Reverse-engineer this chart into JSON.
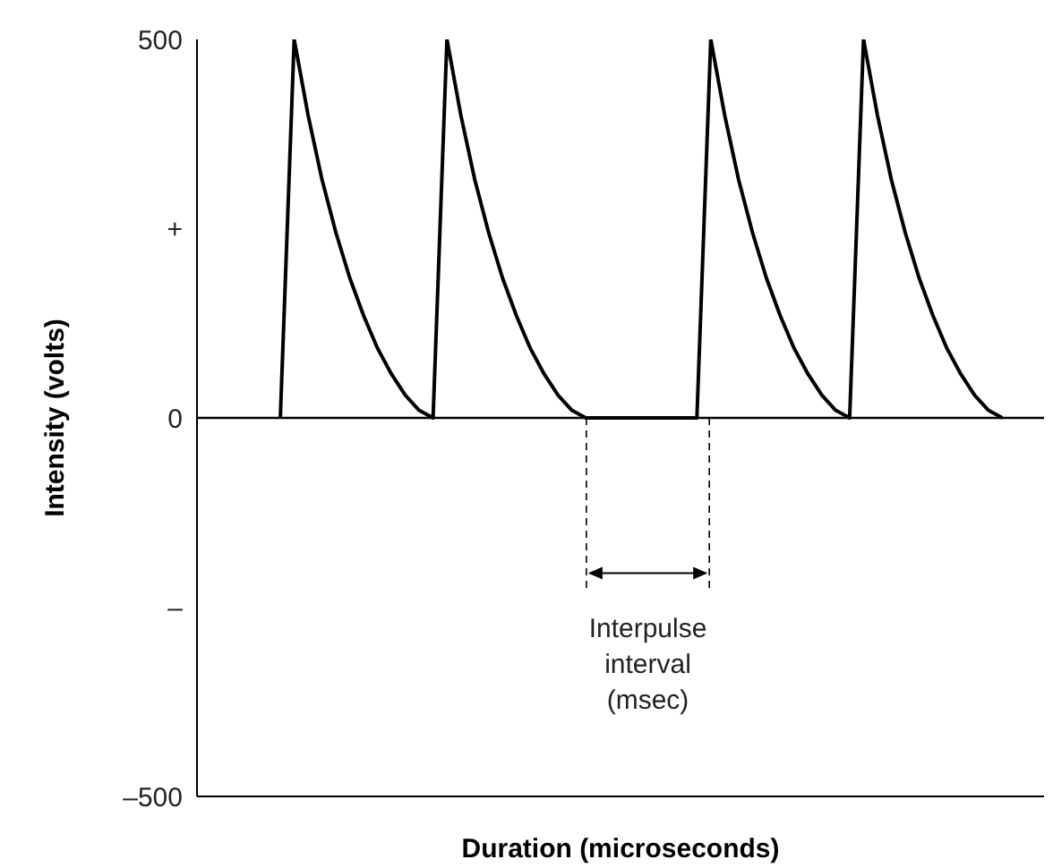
{
  "chart_data": {
    "type": "line",
    "xlabel": "Duration (microseconds)",
    "ylabel": "Intensity (volts)",
    "categories": [
      null,
      null,
      null,
      null,
      null,
      null,
      null,
      null,
      null,
      null,
      null,
      null,
      null,
      null,
      null,
      null,
      null,
      null,
      null,
      null,
      null,
      null,
      null,
      null,
      null,
      null,
      null,
      null,
      null,
      null,
      null,
      null,
      null,
      null,
      null,
      null,
      null,
      null,
      null,
      null,
      null,
      null,
      null,
      null,
      null,
      null,
      null,
      null,
      null,
      null,
      null,
      null,
      null,
      null,
      null,
      null,
      null,
      null,
      null,
      null,
      null,
      null
    ],
    "series": [
      {
        "color": "#000000",
        "values": [
          null,
          null,
          null,
          null,
          null,
          null,
          0,
          500,
          400,
          315,
          245,
          185,
          135,
          92,
          58,
          30,
          10,
          0,
          500,
          400,
          315,
          245,
          185,
          135,
          92,
          58,
          30,
          10,
          0,
          0,
          0,
          0,
          0,
          0,
          0,
          0,
          0,
          500,
          400,
          315,
          245,
          185,
          135,
          92,
          58,
          30,
          10,
          0,
          500,
          400,
          315,
          245,
          185,
          135,
          92,
          58,
          30,
          10,
          0,
          null,
          null,
          null
        ]
      }
    ],
    "ylim": [
      -500,
      500
    ],
    "yticks": [
      {
        "value": -500,
        "label": "–500"
      },
      {
        "value": -250,
        "label": "–"
      },
      0,
      {
        "value": 250,
        "label": "+"
      },
      500
    ],
    "tick_labels": "y",
    "marker": "none",
    "line_style": "solid",
    "ref_lines": [
      {
        "axis": "y",
        "value": 0,
        "label": null,
        "color": "#000000"
      }
    ],
    "annotations": [
      "Interpulse interval (msec)"
    ]
  }
}
